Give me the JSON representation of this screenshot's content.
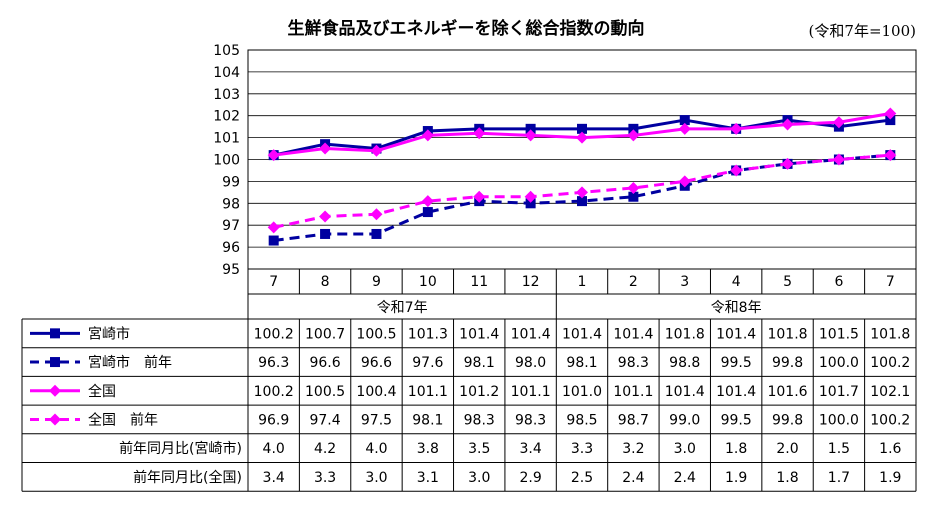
{
  "chart_data": {
    "type": "line",
    "title": "生鮮食品及びエネルギーを除く総合指数の動向",
    "note": "(令和7年=100)",
    "ylim": [
      95,
      105
    ],
    "yticks": [
      95,
      96,
      97,
      98,
      99,
      100,
      101,
      102,
      103,
      104,
      105
    ],
    "categories": [
      "7",
      "8",
      "9",
      "10",
      "11",
      "12",
      "1",
      "2",
      "3",
      "4",
      "5",
      "6",
      "7"
    ],
    "year_groups": [
      {
        "label": "令和7年",
        "count": 6
      },
      {
        "label": "令和8年",
        "count": 7
      }
    ],
    "series": [
      {
        "name": "宮崎市",
        "color": "#0000a0",
        "dash": false,
        "marker": "square",
        "values": [
          100.2,
          100.7,
          100.5,
          101.3,
          101.4,
          101.4,
          101.4,
          101.4,
          101.8,
          101.4,
          101.8,
          101.5,
          101.8
        ]
      },
      {
        "name": "宮崎市　前年",
        "color": "#0000a0",
        "dash": true,
        "marker": "square",
        "values": [
          96.3,
          96.6,
          96.6,
          97.6,
          98.1,
          98.0,
          98.1,
          98.3,
          98.8,
          99.5,
          99.8,
          100.0,
          100.2
        ]
      },
      {
        "name": "全国",
        "color": "#ff00ff",
        "dash": false,
        "marker": "diamond",
        "values": [
          100.2,
          100.5,
          100.4,
          101.1,
          101.2,
          101.1,
          101.0,
          101.1,
          101.4,
          101.4,
          101.6,
          101.7,
          102.1
        ]
      },
      {
        "name": "全国　前年",
        "color": "#ff00ff",
        "dash": true,
        "marker": "diamond",
        "values": [
          96.9,
          97.4,
          97.5,
          98.1,
          98.3,
          98.3,
          98.5,
          98.7,
          99.0,
          99.5,
          99.8,
          100.0,
          100.2
        ]
      }
    ],
    "table_rows": [
      {
        "label": "前年同月比(宮崎市)",
        "values": [
          "4.0",
          "4.2",
          "4.0",
          "3.8",
          "3.5",
          "3.4",
          "3.3",
          "3.2",
          "3.0",
          "1.8",
          "2.0",
          "1.5",
          "1.6"
        ]
      },
      {
        "label": "前年同月比(全国)",
        "values": [
          "3.4",
          "3.3",
          "3.0",
          "3.1",
          "3.0",
          "2.9",
          "2.5",
          "2.4",
          "2.4",
          "1.9",
          "1.8",
          "1.7",
          "1.9"
        ]
      }
    ],
    "grid": true
  }
}
